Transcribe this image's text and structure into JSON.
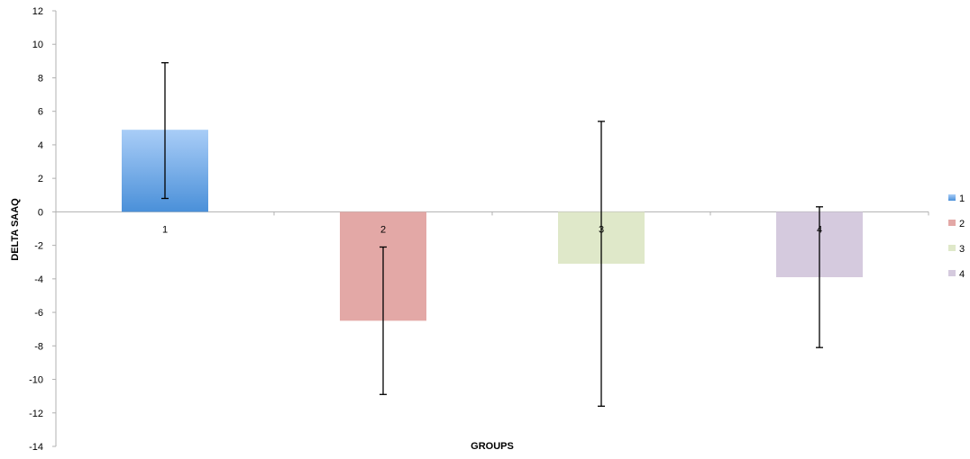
{
  "chart_data": {
    "type": "bar",
    "title": "",
    "xlabel": "GROUPS",
    "ylabel": "DELTA SAAQ",
    "categories": [
      "1",
      "2",
      "3",
      "4"
    ],
    "values": [
      4.9,
      -6.5,
      -3.1,
      -3.9
    ],
    "error_low": [
      0.8,
      -10.9,
      -11.6,
      -8.1
    ],
    "error_high": [
      8.9,
      -2.1,
      5.4,
      0.3
    ],
    "ylim": [
      -14,
      12
    ],
    "yticks": [
      12,
      10,
      8,
      6,
      4,
      2,
      0,
      -2,
      -4,
      -6,
      -8,
      -10,
      -12,
      -14
    ],
    "ytick_labels": [
      "12",
      "10",
      "8",
      "6",
      "4",
      "2",
      "0",
      "-2",
      "-4",
      "-6",
      "-8",
      "-10",
      "-12",
      "-14"
    ],
    "grid": false,
    "legend_position": "right",
    "legend": [
      "1",
      "2",
      "3",
      "4"
    ],
    "colors": {
      "bar1_top": "#a9cdf7",
      "bar1_bottom": "#4a90d9",
      "bar2": "#e3a8a6",
      "bar3": "#dfe8c9",
      "bar4": "#d5cade",
      "axis": "#b0b0b0",
      "error_bar": "#000000"
    }
  }
}
